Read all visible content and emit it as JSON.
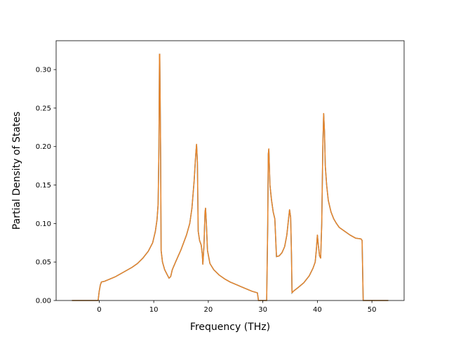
{
  "chart_data": {
    "type": "line",
    "title": "",
    "xlabel": "Frequency (THz)",
    "ylabel": "Partial Density of States",
    "xlim": [
      -7.9,
      55.9
    ],
    "ylim": [
      0.0,
      0.3375
    ],
    "xticks": [
      0,
      10,
      20,
      30,
      40,
      50
    ],
    "xtick_labels": [
      "0",
      "10",
      "20",
      "30",
      "40",
      "50"
    ],
    "yticks": [
      0.0,
      0.05,
      0.1,
      0.15,
      0.2,
      0.25,
      0.3
    ],
    "ytick_labels": [
      "0.00",
      "0.05",
      "0.10",
      "0.15",
      "0.20",
      "0.25",
      "0.30"
    ],
    "grid": false,
    "legend": "none",
    "series": [
      {
        "color": "#e8852a",
        "under_color": "#1f77b4",
        "points": [
          [
            -5.0,
            0.0
          ],
          [
            -0.2,
            0.0
          ],
          [
            0.0,
            0.012
          ],
          [
            0.2,
            0.02
          ],
          [
            0.4,
            0.024
          ],
          [
            1.0,
            0.025
          ],
          [
            2.0,
            0.028
          ],
          [
            3.0,
            0.031
          ],
          [
            4.0,
            0.035
          ],
          [
            5.0,
            0.039
          ],
          [
            6.0,
            0.043
          ],
          [
            7.0,
            0.048
          ],
          [
            8.0,
            0.055
          ],
          [
            9.0,
            0.064
          ],
          [
            9.8,
            0.075
          ],
          [
            10.3,
            0.09
          ],
          [
            10.6,
            0.105
          ],
          [
            10.8,
            0.125
          ],
          [
            10.95,
            0.2
          ],
          [
            11.05,
            0.32
          ],
          [
            11.1,
            0.32
          ],
          [
            11.25,
            0.2
          ],
          [
            11.35,
            0.065
          ],
          [
            11.6,
            0.05
          ],
          [
            12.0,
            0.04
          ],
          [
            12.5,
            0.033
          ],
          [
            12.8,
            0.029
          ],
          [
            13.1,
            0.031
          ],
          [
            13.4,
            0.04
          ],
          [
            14.0,
            0.05
          ],
          [
            15.0,
            0.066
          ],
          [
            16.0,
            0.085
          ],
          [
            16.6,
            0.1
          ],
          [
            17.0,
            0.12
          ],
          [
            17.4,
            0.155
          ],
          [
            17.7,
            0.19
          ],
          [
            17.85,
            0.203
          ],
          [
            18.0,
            0.18
          ],
          [
            18.15,
            0.09
          ],
          [
            18.4,
            0.078
          ],
          [
            18.7,
            0.072
          ],
          [
            18.9,
            0.06
          ],
          [
            19.0,
            0.047
          ],
          [
            19.2,
            0.07
          ],
          [
            19.4,
            0.115
          ],
          [
            19.5,
            0.12
          ],
          [
            19.65,
            0.1
          ],
          [
            19.85,
            0.065
          ],
          [
            20.3,
            0.048
          ],
          [
            21.0,
            0.04
          ],
          [
            22.0,
            0.033
          ],
          [
            23.0,
            0.028
          ],
          [
            24.0,
            0.024
          ],
          [
            25.0,
            0.021
          ],
          [
            26.0,
            0.018
          ],
          [
            27.0,
            0.015
          ],
          [
            28.0,
            0.012
          ],
          [
            29.0,
            0.01
          ],
          [
            29.2,
            0.0
          ],
          [
            30.7,
            0.0
          ],
          [
            30.9,
            0.1
          ],
          [
            31.0,
            0.19
          ],
          [
            31.1,
            0.197
          ],
          [
            31.3,
            0.15
          ],
          [
            31.6,
            0.13
          ],
          [
            31.9,
            0.115
          ],
          [
            32.2,
            0.106
          ],
          [
            32.5,
            0.057
          ],
          [
            33.0,
            0.058
          ],
          [
            33.5,
            0.062
          ],
          [
            34.0,
            0.07
          ],
          [
            34.4,
            0.085
          ],
          [
            34.7,
            0.105
          ],
          [
            34.9,
            0.118
          ],
          [
            35.1,
            0.108
          ],
          [
            35.25,
            0.06
          ],
          [
            35.35,
            0.01
          ],
          [
            35.6,
            0.012
          ],
          [
            36.5,
            0.017
          ],
          [
            37.5,
            0.023
          ],
          [
            38.5,
            0.032
          ],
          [
            39.2,
            0.042
          ],
          [
            39.6,
            0.05
          ],
          [
            39.8,
            0.065
          ],
          [
            40.0,
            0.085
          ],
          [
            40.2,
            0.07
          ],
          [
            40.4,
            0.058
          ],
          [
            40.6,
            0.055
          ],
          [
            40.8,
            0.1
          ],
          [
            41.0,
            0.2
          ],
          [
            41.15,
            0.243
          ],
          [
            41.3,
            0.22
          ],
          [
            41.45,
            0.175
          ],
          [
            41.7,
            0.15
          ],
          [
            42.0,
            0.13
          ],
          [
            42.5,
            0.115
          ],
          [
            43.0,
            0.106
          ],
          [
            43.5,
            0.1
          ],
          [
            44.0,
            0.095
          ],
          [
            45.0,
            0.09
          ],
          [
            46.0,
            0.085
          ],
          [
            47.0,
            0.081
          ],
          [
            48.0,
            0.08
          ],
          [
            48.2,
            0.078
          ],
          [
            48.4,
            0.0
          ],
          [
            53.0,
            0.0
          ]
        ]
      }
    ]
  }
}
